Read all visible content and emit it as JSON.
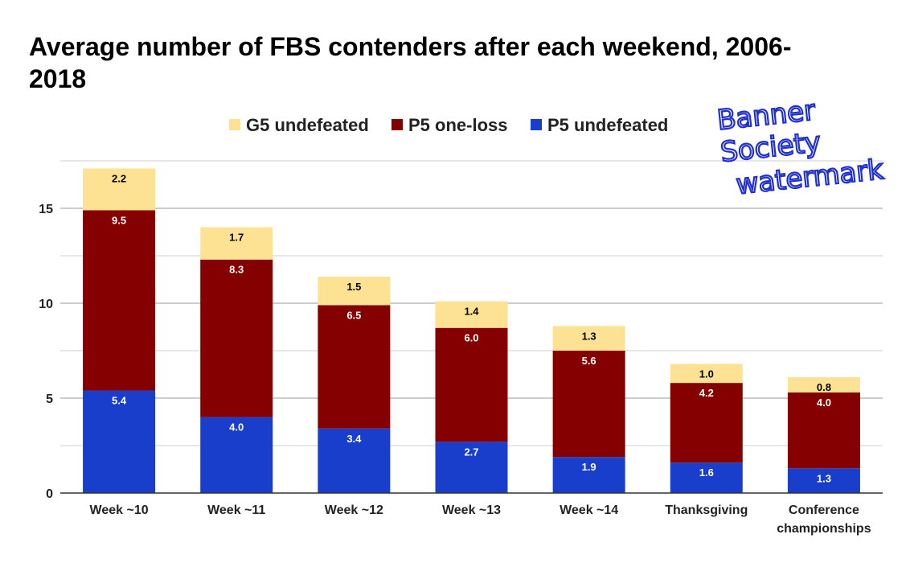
{
  "chart_data": {
    "type": "bar",
    "stacked": true,
    "title": "Average number of FBS contenders after each weekend, 2006-2018",
    "categories": [
      "Week ~10",
      "Week ~11",
      "Week ~12",
      "Week ~13",
      "Week ~14",
      "Thanksgiving",
      "Conference championships"
    ],
    "series": [
      {
        "name": "P5 undefeated",
        "color": "#1a3ecc",
        "label_color": "#ffffff",
        "values": [
          5.4,
          4.0,
          3.4,
          2.7,
          1.9,
          1.6,
          1.3
        ]
      },
      {
        "name": "P5 one-loss",
        "color": "#850000",
        "label_color": "#ffffff",
        "values": [
          9.5,
          8.3,
          6.5,
          6.0,
          5.6,
          4.2,
          4.0
        ]
      },
      {
        "name": "G5 undefeated",
        "color": "#fde293",
        "label_color": "#000000",
        "values": [
          2.2,
          1.7,
          1.5,
          1.4,
          1.3,
          1.0,
          0.8
        ]
      }
    ],
    "legend_order": [
      "G5 undefeated",
      "P5 one-loss",
      "P5 undefeated"
    ],
    "legend_position": "top",
    "ylim": [
      0,
      17.5
    ],
    "yticks": [
      0,
      5,
      10,
      15
    ],
    "grid": true,
    "xlabel": "",
    "ylabel": ""
  },
  "watermark": "Banner Society watermark"
}
